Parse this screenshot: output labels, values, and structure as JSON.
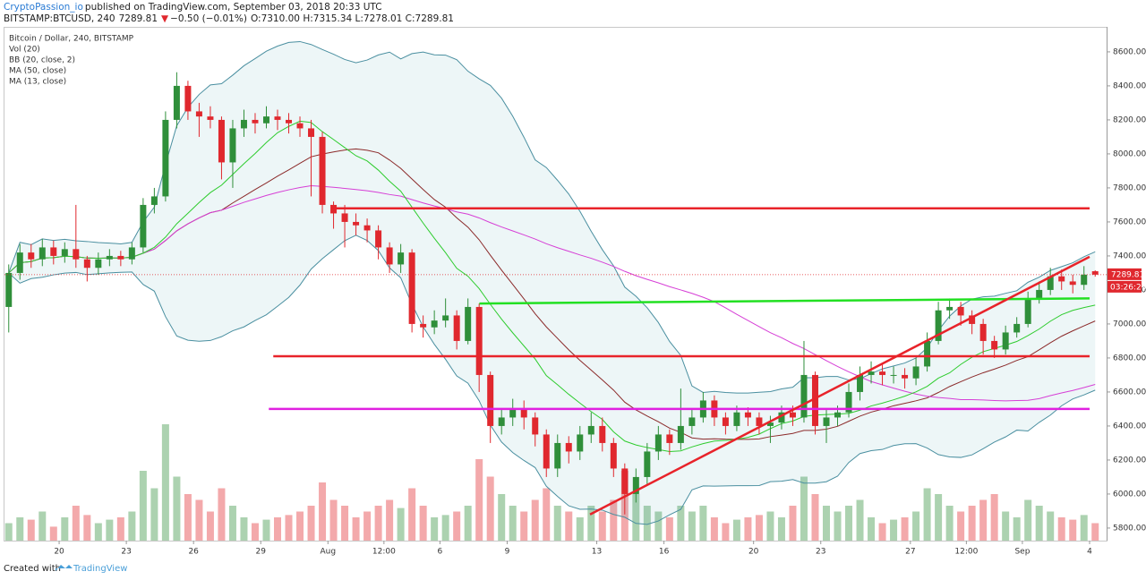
{
  "header": {
    "author": "CryptoPassion_io",
    "published": "published on TradingView.com, September 03, 2018 20:33 UTC",
    "symbol": "BITSTAMP:BTCUSD, 240",
    "price": "7289.81",
    "arrow": "▼",
    "change": "−0.50 (−0.01%)",
    "ohlc": "O:7310.00 H:7315.34 L:7278.01 C:7289.81"
  },
  "footer": {
    "created": "Created with",
    "brand": "TradingView"
  },
  "chart_data": {
    "type": "candlestick",
    "title": "Bitcoin / Dollar, 240, BITSTAMP",
    "indicators": [
      {
        "label": "Vol (20)"
      },
      {
        "label": "BB (20, close, 2)",
        "kind": "bb",
        "period": 20,
        "stddev": 2,
        "color": "#4a8fa0",
        "basis_color": "#8b2a2a"
      },
      {
        "label": "MA (50, close)",
        "kind": "ma",
        "period": 50,
        "color": "#d63fd6"
      },
      {
        "label": "MA (13, close)",
        "kind": "ma",
        "period": 13,
        "color": "#2ecc2e"
      }
    ],
    "up_color": "#2f8f3a",
    "down_color": "#e0282e",
    "x": [
      0.75,
      1.25,
      1.75,
      2.25,
      2.75,
      3.25,
      3.75,
      4.25,
      4.75,
      5.25,
      5.75,
      6.25,
      6.75,
      7.25,
      7.75,
      8.25,
      8.75,
      9.25,
      9.75,
      10.25,
      10.75,
      11.25,
      11.75,
      12.25,
      12.75,
      13.25,
      13.75,
      14.25,
      14.75,
      15.25,
      15.75,
      16.25,
      16.75,
      17.25,
      17.75,
      18.25,
      18.75,
      19.25,
      19.75,
      20.25,
      20.75,
      21.25,
      21.75,
      22.25,
      22.75,
      23.25,
      23.75,
      24.25,
      24.75,
      25.25,
      25.75,
      26.25,
      26.75,
      27.25,
      27.75,
      28.25,
      28.75,
      29.25,
      29.75,
      30.25,
      30.75,
      31.25,
      31.75,
      32.25,
      32.75,
      33.25,
      33.75,
      34.25,
      34.75,
      35.25,
      35.75,
      36.25,
      36.75,
      37.25,
      37.75,
      38.25,
      38.75,
      39.25,
      39.75,
      40.25,
      40.75,
      41.25,
      41.75,
      42.25,
      42.75,
      43.25,
      43.75,
      44.25,
      44.75,
      45.25,
      45.75,
      46.25,
      46.75,
      47.25,
      47.75,
      48.25,
      48.75,
      49.25
    ],
    "open": [
      7100,
      7300,
      7420,
      7380,
      7450,
      7400,
      7440,
      7380,
      7330,
      7380,
      7400,
      7380,
      7450,
      7700,
      7750,
      8200,
      8400,
      8250,
      8220,
      8200,
      7950,
      8150,
      8200,
      8180,
      8220,
      8200,
      8180,
      8150,
      8100,
      7700,
      7650,
      7600,
      7580,
      7550,
      7450,
      7350,
      7420,
      7000,
      6980,
      7020,
      7050,
      6900,
      7100,
      6700,
      6400,
      6450,
      6500,
      6450,
      6350,
      6150,
      6300,
      6250,
      6350,
      6400,
      6300,
      6150,
      6000,
      6100,
      6250,
      6350,
      6300,
      6400,
      6450,
      6550,
      6450,
      6400,
      6480,
      6450,
      6400,
      6420,
      6480,
      6450,
      6700,
      6400,
      6450,
      6480,
      6600,
      6700,
      6720,
      6700,
      6700,
      6680,
      6750,
      6900,
      7080,
      7100,
      7050,
      7000,
      6900,
      6850,
      6950,
      7000,
      7150,
      7200,
      7280,
      7250,
      7230,
      7310
    ],
    "high": [
      7350,
      7470,
      7470,
      7500,
      7490,
      7480,
      7700,
      7400,
      7420,
      7440,
      7430,
      7480,
      7740,
      7800,
      8250,
      8480,
      8430,
      8300,
      8280,
      8220,
      8200,
      8260,
      8240,
      8280,
      8260,
      8240,
      8220,
      8200,
      8130,
      7720,
      7700,
      7650,
      7620,
      7580,
      7480,
      7470,
      7440,
      7050,
      7080,
      7150,
      7080,
      7150,
      7120,
      6720,
      6500,
      6560,
      6550,
      6480,
      6380,
      6350,
      6340,
      6400,
      6480,
      6450,
      6330,
      6180,
      6150,
      6300,
      6400,
      6380,
      6620,
      6500,
      6600,
      6580,
      6480,
      6520,
      6510,
      6480,
      6460,
      6520,
      6520,
      6900,
      6720,
      6500,
      6520,
      6650,
      6750,
      6780,
      6760,
      6750,
      6740,
      6800,
      6950,
      7130,
      7150,
      7130,
      7080,
      7030,
      6930,
      6990,
      7040,
      7190,
      7250,
      7330,
      7320,
      7290,
      7340,
      7315.34
    ],
    "low": [
      6950,
      7260,
      7330,
      7340,
      7350,
      7360,
      7330,
      7250,
      7290,
      7340,
      7340,
      7350,
      7420,
      7650,
      7720,
      8150,
      8200,
      8100,
      8150,
      7850,
      7800,
      8100,
      8120,
      8150,
      8140,
      8120,
      8100,
      7750,
      7650,
      7560,
      7450,
      7520,
      7480,
      7380,
      7300,
      7300,
      6950,
      6920,
      6940,
      6980,
      6850,
      6880,
      6600,
      6300,
      6350,
      6400,
      6380,
      6280,
      6100,
      6100,
      6180,
      6200,
      6300,
      6250,
      6100,
      5880,
      5950,
      6050,
      6200,
      6230,
      6260,
      6350,
      6420,
      6400,
      6350,
      6370,
      6400,
      6350,
      6300,
      6380,
      6400,
      6420,
      6350,
      6300,
      6400,
      6450,
      6550,
      6650,
      6640,
      6650,
      6620,
      6640,
      6720,
      6880,
      7030,
      6990,
      6940,
      6820,
      6800,
      6820,
      6920,
      6980,
      7120,
      7170,
      7200,
      7180,
      7200,
      7278.01
    ],
    "close": [
      7300,
      7420,
      7380,
      7450,
      7400,
      7440,
      7380,
      7330,
      7380,
      7400,
      7380,
      7450,
      7700,
      7750,
      8200,
      8400,
      8250,
      8220,
      8200,
      7950,
      8150,
      8200,
      8180,
      8220,
      8200,
      8180,
      8150,
      8100,
      7700,
      7650,
      7600,
      7580,
      7550,
      7450,
      7350,
      7420,
      7000,
      6980,
      7020,
      7050,
      6900,
      7100,
      6700,
      6400,
      6450,
      6500,
      6450,
      6350,
      6150,
      6300,
      6250,
      6350,
      6400,
      6300,
      6150,
      6000,
      6100,
      6250,
      6350,
      6300,
      6400,
      6450,
      6550,
      6450,
      6400,
      6480,
      6450,
      6400,
      6420,
      6480,
      6450,
      6700,
      6400,
      6450,
      6480,
      6600,
      6700,
      6720,
      6700,
      6700,
      6680,
      6750,
      6900,
      7080,
      7100,
      7050,
      7000,
      6900,
      6850,
      6950,
      7000,
      7150,
      7200,
      7280,
      7250,
      7230,
      7290,
      7289.81
    ],
    "volume": [
      15,
      20,
      18,
      25,
      12,
      20,
      30,
      22,
      15,
      18,
      20,
      25,
      60,
      45,
      100,
      55,
      40,
      35,
      25,
      45,
      30,
      20,
      15,
      18,
      20,
      22,
      25,
      30,
      50,
      35,
      30,
      20,
      25,
      30,
      35,
      28,
      45,
      30,
      20,
      22,
      25,
      30,
      70,
      55,
      40,
      30,
      25,
      35,
      45,
      30,
      25,
      20,
      30,
      25,
      35,
      60,
      40,
      30,
      25,
      20,
      30,
      25,
      30,
      20,
      15,
      18,
      20,
      22,
      25,
      20,
      30,
      55,
      40,
      30,
      25,
      30,
      35,
      20,
      15,
      18,
      20,
      25,
      45,
      40,
      30,
      25,
      30,
      35,
      40,
      25,
      20,
      35,
      30,
      25,
      20,
      18,
      22,
      15
    ],
    "drawings": [
      {
        "color": "#e8232a",
        "x": [
          15.16,
          49
        ],
        "y": [
          7680,
          7680
        ]
      },
      {
        "color": "#22e022",
        "x": [
          21.76,
          49
        ],
        "y": [
          7120,
          7150
        ]
      },
      {
        "color": "#e8232a",
        "x": [
          12.56,
          49
        ],
        "y": [
          6810,
          6810
        ]
      },
      {
        "color": "#e020e0",
        "x": [
          12.36,
          49
        ],
        "y": [
          6500,
          6500
        ]
      },
      {
        "color": "#e8232a",
        "x": [
          26.7,
          49
        ],
        "y": [
          5880,
          7395
        ]
      }
    ],
    "last_price": {
      "value": 7289.81,
      "label": "7289.81"
    },
    "countdown": "03:26:29",
    "xlim": [
      0.56,
      49.76
    ],
    "xticks": [
      {
        "value": 3,
        "label": "20"
      },
      {
        "value": 6,
        "label": "23"
      },
      {
        "value": 9,
        "label": "26"
      },
      {
        "value": 12,
        "label": "29"
      },
      {
        "value": 15,
        "label": "Aug"
      },
      {
        "value": 17.5,
        "label": "12:00"
      },
      {
        "value": 20,
        "label": "6"
      },
      {
        "value": 23,
        "label": "9"
      },
      {
        "value": 27,
        "label": "13"
      },
      {
        "value": 30,
        "label": "16"
      },
      {
        "value": 34,
        "label": "20"
      },
      {
        "value": 37,
        "label": "23"
      },
      {
        "value": 41,
        "label": "27"
      },
      {
        "value": 43.5,
        "label": "12:00"
      },
      {
        "value": 46,
        "label": "Sep"
      },
      {
        "value": 49,
        "label": "4"
      }
    ],
    "ylim": [
      5726,
      8747
    ],
    "yticks": [
      {
        "value": 5800,
        "label": "5800.00"
      },
      {
        "value": 6000,
        "label": "6000.00"
      },
      {
        "value": 6200,
        "label": "6200.00"
      },
      {
        "value": 6400,
        "label": "6400.00"
      },
      {
        "value": 6600,
        "label": "6600.00"
      },
      {
        "value": 6800,
        "label": "6800.00"
      },
      {
        "value": 7000,
        "label": "7000.00"
      },
      {
        "value": 7200,
        "label": "7200.00"
      },
      {
        "value": 7400,
        "label": "7400.00"
      },
      {
        "value": 7600,
        "label": "7600.00"
      },
      {
        "value": 7800,
        "label": "7800.00"
      },
      {
        "value": 8000,
        "label": "8000.00"
      },
      {
        "value": 8200,
        "label": "8200.00"
      },
      {
        "value": 8400,
        "label": "8400.00"
      },
      {
        "value": 8600,
        "label": "8600.00"
      }
    ]
  }
}
